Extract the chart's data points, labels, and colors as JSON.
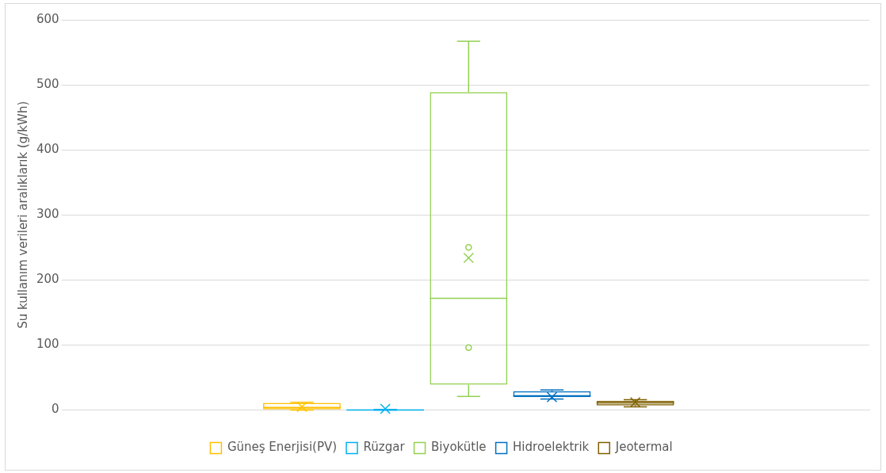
{
  "chart_data": {
    "type": "box",
    "ylabel": "Su kullanım verileri aralıklarık (g/kWh)",
    "categories": [
      null
    ],
    "series": [
      {
        "name": "Güneş Enerjisi(PV)",
        "color": "#ffc000",
        "boxes": [
          {
            "low": 0,
            "q1": 1,
            "median": 4,
            "q3": 11,
            "high": 12,
            "mean": 5
          }
        ]
      },
      {
        "name": "Rüzgar",
        "color": "#00b0f0",
        "boxes": [
          {
            "low": 0,
            "q1": 0,
            "median": 0,
            "q3": 1,
            "high": 1,
            "mean": 2
          }
        ]
      },
      {
        "name": "Biyokütle",
        "color": "#92d050",
        "boxes": [
          {
            "low": 21,
            "q1": 39,
            "median": 172,
            "q3": 489,
            "high": 567,
            "mean": 234,
            "outliers": [
              250,
              96
            ]
          }
        ]
      },
      {
        "name": "Hidroelektrik",
        "color": "#0070c0",
        "boxes": [
          {
            "low": 17,
            "q1": 20,
            "median": 22,
            "q3": 29,
            "high": 31,
            "mean": 20
          }
        ]
      },
      {
        "name": "Jeotermal",
        "color": "#7f6000",
        "boxes": [
          {
            "low": 5,
            "q1": 7,
            "median": 11,
            "q3": 14,
            "high": 16,
            "mean": 12
          }
        ]
      }
    ],
    "ylim": [
      0,
      600
    ],
    "yticks": [
      0,
      100,
      200,
      300,
      400,
      500,
      600
    ],
    "grid": "y",
    "legend": "bottom"
  }
}
